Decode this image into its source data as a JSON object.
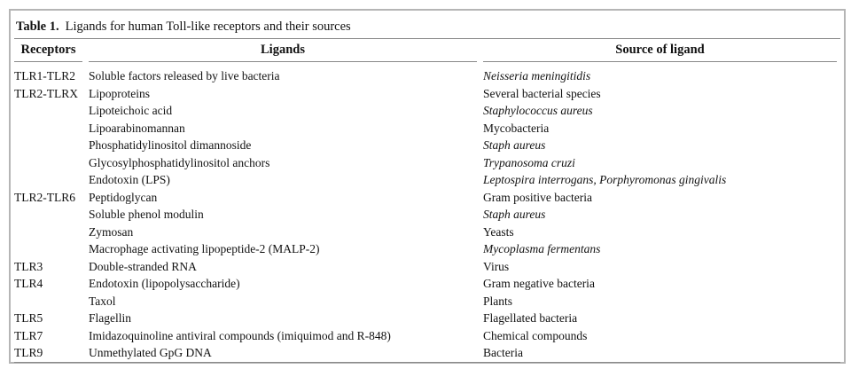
{
  "colors": {
    "frame_border": "#b5b5b5",
    "rule_line": "#8a8a8a",
    "text": "#111111",
    "background": "#ffffff"
  },
  "table": {
    "title_label": "Table 1.",
    "title_text": "Ligands for human Toll-like receptors and their sources",
    "columns": [
      "Receptors",
      "Ligands",
      "Source of ligand"
    ],
    "rows": [
      {
        "receptor": "TLR1-TLR2",
        "ligand": "Soluble factors released by live bacteria",
        "source": "Neisseria meningitidis",
        "source_italic": true
      },
      {
        "receptor": "TLR2-TLRX",
        "ligand": "Lipoproteins",
        "source": "Several bacterial species",
        "source_italic": false
      },
      {
        "receptor": "",
        "ligand": "Lipoteichoic acid",
        "source": "Staphylococcus aureus",
        "source_italic": true
      },
      {
        "receptor": "",
        "ligand": "Lipoarabinomannan",
        "source": "Mycobacteria",
        "source_italic": false
      },
      {
        "receptor": "",
        "ligand": "Phosphatidylinositol dimannoside",
        "source": "Staph aureus",
        "source_italic": true
      },
      {
        "receptor": "",
        "ligand": "Glycosylphosphatidylinositol anchors",
        "source": "Trypanosoma cruzi",
        "source_italic": true
      },
      {
        "receptor": "",
        "ligand": "Endotoxin (LPS)",
        "source": "Leptospira interrogans, Porphyromonas gingivalis",
        "source_italic": true
      },
      {
        "receptor": "TLR2-TLR6",
        "ligand": "Peptidoglycan",
        "source": "Gram positive bacteria",
        "source_italic": false
      },
      {
        "receptor": "",
        "ligand": "Soluble phenol modulin",
        "source": "Staph aureus",
        "source_italic": true
      },
      {
        "receptor": "",
        "ligand": "Zymosan",
        "source": "Yeasts",
        "source_italic": false
      },
      {
        "receptor": "",
        "ligand": "Macrophage activating lipopeptide-2 (MALP-2)",
        "source": "Mycoplasma fermentans",
        "source_italic": true
      },
      {
        "receptor": "TLR3",
        "ligand": "Double-stranded RNA",
        "source": "Virus",
        "source_italic": false
      },
      {
        "receptor": "TLR4",
        "ligand": "Endotoxin (lipopolysaccharide)",
        "source": "Gram negative bacteria",
        "source_italic": false
      },
      {
        "receptor": "",
        "ligand": "Taxol",
        "source": "Plants",
        "source_italic": false
      },
      {
        "receptor": "TLR5",
        "ligand": "Flagellin",
        "source": "Flagellated bacteria",
        "source_italic": false
      },
      {
        "receptor": "TLR7",
        "ligand": "Imidazoquinoline antiviral compounds (imiquimod and R-848)",
        "source": "Chemical compounds",
        "source_italic": false
      },
      {
        "receptor": "TLR9",
        "ligand": "Unmethylated GpG DNA",
        "source": "Bacteria",
        "source_italic": false
      }
    ]
  }
}
